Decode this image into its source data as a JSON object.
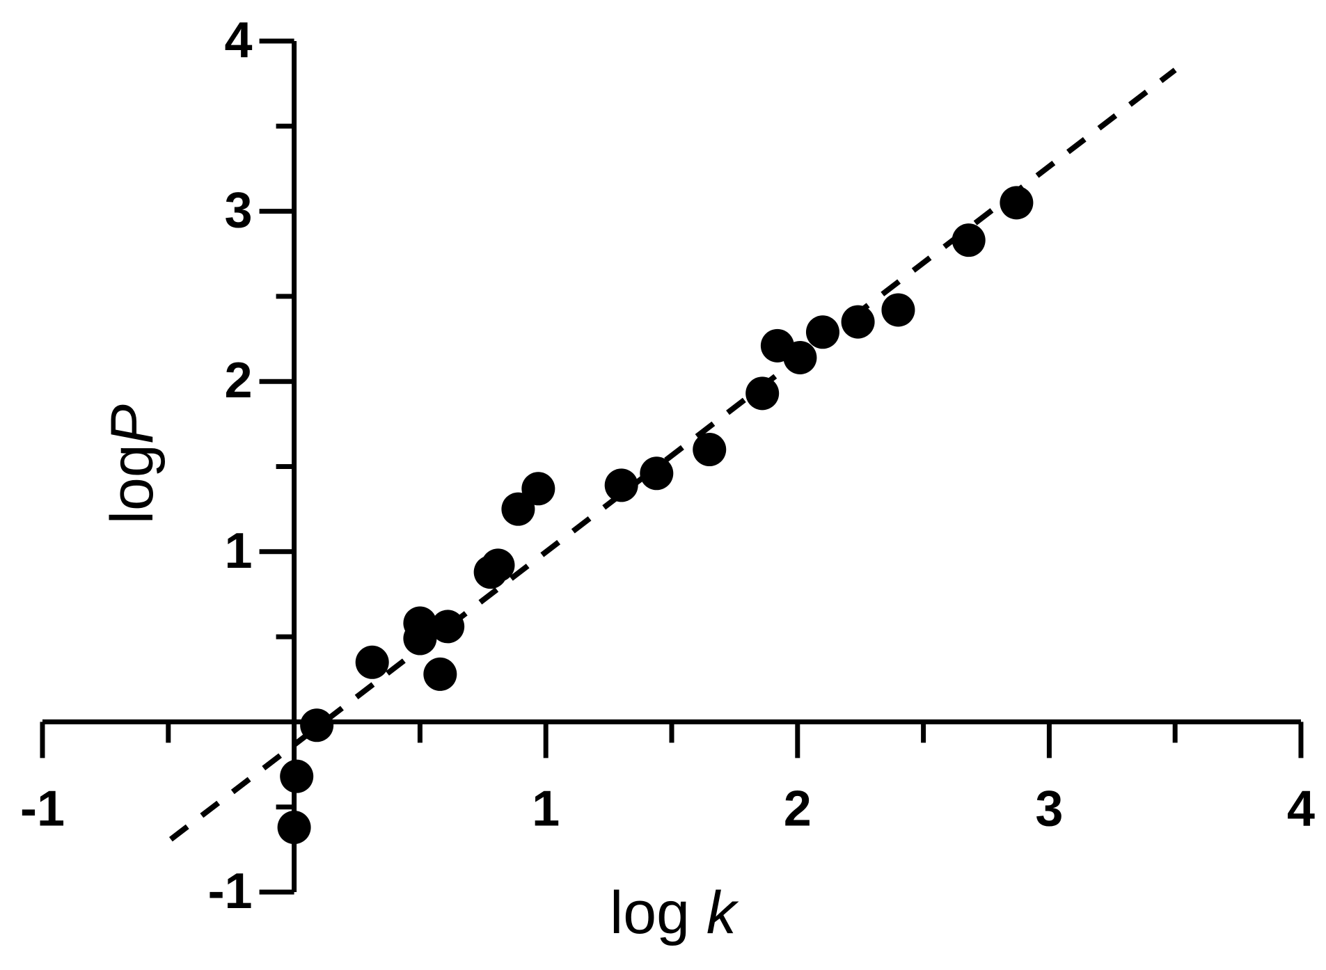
{
  "chart_data": {
    "type": "scatter",
    "xlabel": [
      "log ",
      "k"
    ],
    "ylabel": [
      "log",
      "P"
    ],
    "x": [
      0.0,
      0.01,
      0.09,
      0.31,
      0.5,
      0.5,
      0.61,
      0.58,
      0.78,
      0.81,
      0.89,
      0.97,
      1.3,
      1.44,
      1.65,
      1.86,
      1.92,
      2.01,
      2.1,
      2.24,
      2.4,
      2.68,
      2.87
    ],
    "values": [
      -0.62,
      -0.32,
      -0.02,
      0.35,
      0.49,
      0.58,
      0.56,
      0.28,
      0.88,
      0.92,
      1.25,
      1.37,
      1.39,
      1.46,
      1.6,
      1.93,
      2.21,
      2.14,
      2.29,
      2.35,
      2.42,
      2.83,
      3.05
    ],
    "color": "#000000",
    "fit_line": {
      "x": [
        -0.49,
        3.5
      ],
      "y": [
        -0.69,
        3.83
      ]
    },
    "xlim": [
      -1,
      4
    ],
    "ylim": [
      -1,
      4
    ],
    "xticks": [
      -1,
      1,
      2,
      3,
      4
    ],
    "yticks": [
      -1,
      1,
      2,
      3,
      4
    ],
    "xminor_ticks": [
      -0.5,
      0.5,
      1.5,
      2.5,
      3.5
    ],
    "yminor_ticks": [
      -0.5,
      0.5,
      1.5,
      2.5,
      3.5
    ],
    "grid": false
  }
}
